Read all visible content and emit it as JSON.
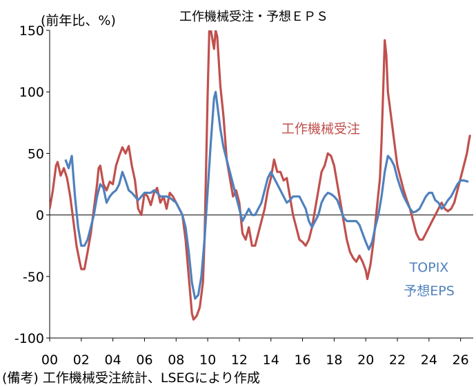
{
  "chart_data": {
    "type": "line",
    "title": "工作機械受注・予想ＥＰＳ",
    "ylabel": "(前年比、%)",
    "source": "(備考) 工作機械受注統計、LSEGにより作成",
    "xlim": [
      2000,
      2026.8
    ],
    "ylim": [
      -100,
      150
    ],
    "y_ticks": [
      150,
      100,
      50,
      0,
      -50,
      -100
    ],
    "x_ticks": [
      "00",
      "02",
      "04",
      "06",
      "08",
      "10",
      "12",
      "14",
      "16",
      "18",
      "20",
      "22",
      "24",
      "26"
    ],
    "series": [
      {
        "name": "工作機械受注",
        "color": "#c0504d",
        "label_lines": [
          "工作機械受注"
        ],
        "points": [
          [
            2000.0,
            5
          ],
          [
            2000.2,
            20
          ],
          [
            2000.4,
            40
          ],
          [
            2000.5,
            43
          ],
          [
            2000.7,
            32
          ],
          [
            2000.9,
            38
          ],
          [
            2001.1,
            30
          ],
          [
            2001.3,
            15
          ],
          [
            2001.5,
            -5
          ],
          [
            2001.7,
            -25
          ],
          [
            2001.9,
            -38
          ],
          [
            2002.0,
            -44
          ],
          [
            2002.2,
            -44
          ],
          [
            2002.4,
            -30
          ],
          [
            2002.6,
            -15
          ],
          [
            2002.8,
            5
          ],
          [
            2003.0,
            25
          ],
          [
            2003.1,
            38
          ],
          [
            2003.2,
            40
          ],
          [
            2003.4,
            25
          ],
          [
            2003.6,
            20
          ],
          [
            2003.8,
            27
          ],
          [
            2004.0,
            25
          ],
          [
            2004.2,
            40
          ],
          [
            2004.4,
            48
          ],
          [
            2004.6,
            55
          ],
          [
            2004.8,
            50
          ],
          [
            2005.0,
            56
          ],
          [
            2005.2,
            40
          ],
          [
            2005.4,
            28
          ],
          [
            2005.6,
            5
          ],
          [
            2005.8,
            0
          ],
          [
            2006.0,
            18
          ],
          [
            2006.2,
            15
          ],
          [
            2006.4,
            8
          ],
          [
            2006.6,
            18
          ],
          [
            2006.8,
            22
          ],
          [
            2007.0,
            10
          ],
          [
            2007.2,
            15
          ],
          [
            2007.4,
            5
          ],
          [
            2007.6,
            18
          ],
          [
            2007.8,
            15
          ],
          [
            2008.0,
            10
          ],
          [
            2008.2,
            5
          ],
          [
            2008.4,
            0
          ],
          [
            2008.6,
            -20
          ],
          [
            2008.8,
            -50
          ],
          [
            2009.0,
            -80
          ],
          [
            2009.1,
            -85
          ],
          [
            2009.3,
            -82
          ],
          [
            2009.5,
            -75
          ],
          [
            2009.7,
            -55
          ],
          [
            2009.8,
            -20
          ],
          [
            2009.9,
            40
          ],
          [
            2010.0,
            100
          ],
          [
            2010.1,
            150
          ],
          [
            2010.2,
            150
          ],
          [
            2010.4,
            135
          ],
          [
            2010.5,
            150
          ],
          [
            2010.6,
            145
          ],
          [
            2010.8,
            105
          ],
          [
            2011.0,
            80
          ],
          [
            2011.2,
            45
          ],
          [
            2011.4,
            30
          ],
          [
            2011.6,
            15
          ],
          [
            2011.8,
            20
          ],
          [
            2012.0,
            10
          ],
          [
            2012.2,
            -15
          ],
          [
            2012.4,
            -20
          ],
          [
            2012.6,
            -10
          ],
          [
            2012.8,
            -25
          ],
          [
            2013.0,
            -25
          ],
          [
            2013.2,
            -15
          ],
          [
            2013.4,
            -5
          ],
          [
            2013.6,
            5
          ],
          [
            2013.8,
            20
          ],
          [
            2014.0,
            30
          ],
          [
            2014.2,
            45
          ],
          [
            2014.4,
            35
          ],
          [
            2014.6,
            35
          ],
          [
            2014.8,
            28
          ],
          [
            2015.0,
            30
          ],
          [
            2015.2,
            15
          ],
          [
            2015.4,
            0
          ],
          [
            2015.6,
            -10
          ],
          [
            2015.8,
            -20
          ],
          [
            2016.0,
            -22
          ],
          [
            2016.2,
            -25
          ],
          [
            2016.4,
            -20
          ],
          [
            2016.6,
            -10
          ],
          [
            2016.8,
            5
          ],
          [
            2017.0,
            20
          ],
          [
            2017.2,
            35
          ],
          [
            2017.4,
            40
          ],
          [
            2017.6,
            50
          ],
          [
            2017.8,
            48
          ],
          [
            2018.0,
            40
          ],
          [
            2018.2,
            25
          ],
          [
            2018.4,
            10
          ],
          [
            2018.6,
            -5
          ],
          [
            2018.8,
            -20
          ],
          [
            2019.0,
            -30
          ],
          [
            2019.2,
            -35
          ],
          [
            2019.4,
            -38
          ],
          [
            2019.6,
            -33
          ],
          [
            2019.8,
            -38
          ],
          [
            2020.0,
            -45
          ],
          [
            2020.1,
            -52
          ],
          [
            2020.3,
            -40
          ],
          [
            2020.5,
            -20
          ],
          [
            2020.7,
            5
          ],
          [
            2020.9,
            30
          ],
          [
            2021.0,
            60
          ],
          [
            2021.1,
            100
          ],
          [
            2021.2,
            142
          ],
          [
            2021.3,
            130
          ],
          [
            2021.4,
            100
          ],
          [
            2021.6,
            80
          ],
          [
            2021.8,
            60
          ],
          [
            2021.9,
            50
          ],
          [
            2022.0,
            40
          ],
          [
            2022.2,
            30
          ],
          [
            2022.4,
            20
          ],
          [
            2022.6,
            12
          ],
          [
            2022.8,
            5
          ],
          [
            2023.0,
            -5
          ],
          [
            2023.2,
            -15
          ],
          [
            2023.4,
            -20
          ],
          [
            2023.6,
            -20
          ],
          [
            2023.8,
            -15
          ],
          [
            2024.0,
            -10
          ],
          [
            2024.2,
            -5
          ],
          [
            2024.4,
            0
          ],
          [
            2024.6,
            5
          ],
          [
            2024.8,
            10
          ],
          [
            2025.0,
            5
          ],
          [
            2025.2,
            3
          ],
          [
            2025.4,
            5
          ],
          [
            2025.6,
            10
          ],
          [
            2025.8,
            20
          ],
          [
            2026.0,
            30
          ],
          [
            2026.2,
            40
          ],
          [
            2026.4,
            50
          ],
          [
            2026.5,
            58
          ],
          [
            2026.6,
            65
          ]
        ]
      },
      {
        "name": "TOPIX 予想EPS",
        "color": "#4f81bd",
        "label_lines": [
          "TOPIX",
          "予想EPS"
        ],
        "points": [
          [
            2001.0,
            45
          ],
          [
            2001.2,
            38
          ],
          [
            2001.4,
            48
          ],
          [
            2001.6,
            15
          ],
          [
            2001.8,
            -10
          ],
          [
            2002.0,
            -25
          ],
          [
            2002.2,
            -25
          ],
          [
            2002.4,
            -20
          ],
          [
            2002.6,
            -10
          ],
          [
            2002.8,
            0
          ],
          [
            2003.0,
            15
          ],
          [
            2003.2,
            25
          ],
          [
            2003.4,
            22
          ],
          [
            2003.6,
            10
          ],
          [
            2003.8,
            15
          ],
          [
            2004.0,
            18
          ],
          [
            2004.2,
            20
          ],
          [
            2004.4,
            25
          ],
          [
            2004.6,
            35
          ],
          [
            2004.8,
            28
          ],
          [
            2005.0,
            20
          ],
          [
            2005.2,
            18
          ],
          [
            2005.4,
            15
          ],
          [
            2005.6,
            12
          ],
          [
            2005.8,
            15
          ],
          [
            2006.0,
            18
          ],
          [
            2006.2,
            18
          ],
          [
            2006.4,
            18
          ],
          [
            2006.6,
            20
          ],
          [
            2006.8,
            18
          ],
          [
            2007.0,
            15
          ],
          [
            2007.2,
            15
          ],
          [
            2007.4,
            15
          ],
          [
            2007.6,
            14
          ],
          [
            2007.8,
            12
          ],
          [
            2008.0,
            10
          ],
          [
            2008.2,
            5
          ],
          [
            2008.4,
            0
          ],
          [
            2008.6,
            -10
          ],
          [
            2008.8,
            -30
          ],
          [
            2009.0,
            -55
          ],
          [
            2009.2,
            -68
          ],
          [
            2009.4,
            -65
          ],
          [
            2009.6,
            -50
          ],
          [
            2009.8,
            -20
          ],
          [
            2010.0,
            20
          ],
          [
            2010.2,
            60
          ],
          [
            2010.4,
            95
          ],
          [
            2010.5,
            100
          ],
          [
            2010.6,
            90
          ],
          [
            2010.8,
            70
          ],
          [
            2011.0,
            55
          ],
          [
            2011.2,
            45
          ],
          [
            2011.4,
            35
          ],
          [
            2011.6,
            25
          ],
          [
            2011.8,
            15
          ],
          [
            2012.0,
            5
          ],
          [
            2012.2,
            -5
          ],
          [
            2012.4,
            0
          ],
          [
            2012.6,
            5
          ],
          [
            2012.8,
            0
          ],
          [
            2013.0,
            0
          ],
          [
            2013.2,
            5
          ],
          [
            2013.4,
            10
          ],
          [
            2013.6,
            20
          ],
          [
            2013.8,
            30
          ],
          [
            2014.0,
            35
          ],
          [
            2014.2,
            30
          ],
          [
            2014.4,
            25
          ],
          [
            2014.6,
            20
          ],
          [
            2014.8,
            15
          ],
          [
            2015.0,
            10
          ],
          [
            2015.2,
            12
          ],
          [
            2015.4,
            15
          ],
          [
            2015.6,
            15
          ],
          [
            2015.8,
            15
          ],
          [
            2016.0,
            10
          ],
          [
            2016.2,
            5
          ],
          [
            2016.4,
            -5
          ],
          [
            2016.6,
            -10
          ],
          [
            2016.8,
            -5
          ],
          [
            2017.0,
            0
          ],
          [
            2017.2,
            10
          ],
          [
            2017.4,
            15
          ],
          [
            2017.6,
            18
          ],
          [
            2017.8,
            17
          ],
          [
            2018.0,
            15
          ],
          [
            2018.2,
            12
          ],
          [
            2018.4,
            5
          ],
          [
            2018.6,
            -2
          ],
          [
            2018.8,
            -5
          ],
          [
            2019.0,
            -5
          ],
          [
            2019.2,
            -5
          ],
          [
            2019.4,
            -5
          ],
          [
            2019.6,
            -8
          ],
          [
            2019.8,
            -15
          ],
          [
            2020.0,
            -22
          ],
          [
            2020.2,
            -28
          ],
          [
            2020.4,
            -22
          ],
          [
            2020.6,
            -10
          ],
          [
            2020.8,
            0
          ],
          [
            2021.0,
            15
          ],
          [
            2021.2,
            35
          ],
          [
            2021.4,
            48
          ],
          [
            2021.6,
            45
          ],
          [
            2021.8,
            40
          ],
          [
            2022.0,
            30
          ],
          [
            2022.2,
            22
          ],
          [
            2022.4,
            15
          ],
          [
            2022.6,
            10
          ],
          [
            2022.8,
            5
          ],
          [
            2023.0,
            2
          ],
          [
            2023.2,
            3
          ],
          [
            2023.4,
            5
          ],
          [
            2023.6,
            10
          ],
          [
            2023.8,
            15
          ],
          [
            2024.0,
            18
          ],
          [
            2024.2,
            18
          ],
          [
            2024.4,
            12
          ],
          [
            2024.6,
            10
          ],
          [
            2024.8,
            5
          ],
          [
            2025.0,
            8
          ],
          [
            2025.2,
            12
          ],
          [
            2025.4,
            15
          ],
          [
            2025.6,
            20
          ],
          [
            2025.8,
            25
          ],
          [
            2026.0,
            28
          ],
          [
            2026.2,
            28
          ],
          [
            2026.5,
            27
          ]
        ]
      }
    ]
  }
}
